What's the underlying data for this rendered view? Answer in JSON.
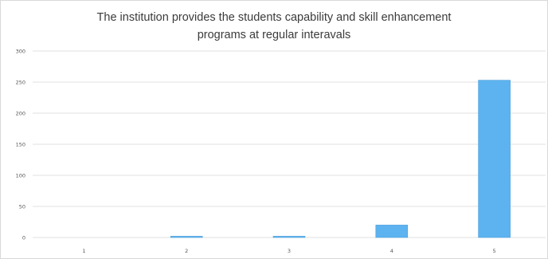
{
  "chart_data": {
    "type": "bar",
    "title_lines": [
      "The institution provides the students capability and skill enhancement",
      "programs at regular interavals"
    ],
    "categories": [
      "1",
      "2",
      "3",
      "4",
      "5"
    ],
    "values": [
      0,
      2,
      2,
      20,
      253
    ],
    "ylim": [
      0,
      300
    ],
    "yticks": [
      "0",
      "50",
      "100",
      "150",
      "200",
      "250",
      "300"
    ],
    "grid": true,
    "legend": "none",
    "bar_color": "#5db3ef",
    "bar_edge_color": "#4a9ddb",
    "grid_color": "#d9d9d9"
  }
}
